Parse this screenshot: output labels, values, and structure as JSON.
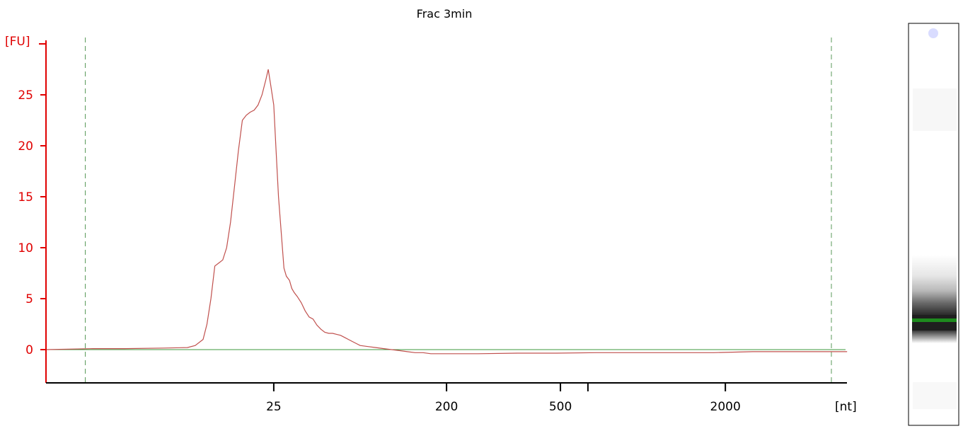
{
  "chart_data": {
    "type": "line",
    "title": "Frac 3min",
    "ylabel": "[FU]",
    "xlabel": "[nt]",
    "ylim": [
      -3.2,
      30
    ],
    "yticks": [
      0,
      5,
      10,
      15,
      20,
      25
    ],
    "xticks": [
      {
        "label": "25",
        "t": 0.29
      },
      {
        "label": "200",
        "t": 0.51
      },
      {
        "label": "500",
        "t": 0.655
      },
      {
        "label": "",
        "t": 0.69
      },
      {
        "label": "2000",
        "t": 0.865
      }
    ],
    "markers": {
      "lower_t": 0.05,
      "upper_t": 1.0
    },
    "grid": false,
    "colors": {
      "signal": "#c0504d",
      "baseline": "#3d9a3d",
      "axis_y": "#e00000",
      "axis_x": "#000000",
      "marker": "#5a9a5a"
    },
    "series": [
      {
        "t": [
          0.0,
          0.06,
          0.07,
          0.1,
          0.15,
          0.18,
          0.19,
          0.2,
          0.205,
          0.21,
          0.215,
          0.22,
          0.225,
          0.23,
          0.235,
          0.24,
          0.245,
          0.25,
          0.255,
          0.26,
          0.265,
          0.27,
          0.275,
          0.28,
          0.283,
          0.286,
          0.29,
          0.293,
          0.296,
          0.3,
          0.303,
          0.306,
          0.31,
          0.313,
          0.316,
          0.32,
          0.325,
          0.33,
          0.335,
          0.34,
          0.345,
          0.35,
          0.355,
          0.36,
          0.365,
          0.37,
          0.375,
          0.38,
          0.385,
          0.39,
          0.395,
          0.4,
          0.41,
          0.42,
          0.43,
          0.44,
          0.45,
          0.46,
          0.47,
          0.48,
          0.49,
          0.5,
          0.51,
          0.52,
          0.53,
          0.55,
          0.6,
          0.65,
          0.7,
          0.75,
          0.8,
          0.85,
          0.9,
          0.95,
          0.97,
          1.0,
          1.02
        ],
        "values": [
          0,
          0.1,
          0.1,
          0.1,
          0.15,
          0.2,
          0.4,
          1.0,
          2.5,
          5.0,
          8.2,
          8.5,
          8.8,
          10.0,
          12.5,
          16.0,
          19.5,
          22.5,
          23.0,
          23.3,
          23.5,
          24.0,
          25.0,
          26.5,
          27.5,
          26.0,
          24.0,
          19.5,
          15.0,
          11.0,
          8.0,
          7.2,
          6.8,
          6.0,
          5.6,
          5.2,
          4.6,
          3.8,
          3.2,
          3.0,
          2.4,
          2.0,
          1.7,
          1.6,
          1.6,
          1.5,
          1.4,
          1.2,
          1.0,
          0.8,
          0.6,
          0.4,
          0.3,
          0.2,
          0.1,
          0.0,
          -0.1,
          -0.2,
          -0.3,
          -0.3,
          -0.4,
          -0.4,
          -0.4,
          -0.4,
          -0.4,
          -0.4,
          -0.35,
          -0.35,
          -0.3,
          -0.3,
          -0.3,
          -0.3,
          -0.2,
          -0.2,
          -0.2,
          -0.2,
          -0.2
        ]
      }
    ]
  },
  "gel": {
    "label": ""
  }
}
